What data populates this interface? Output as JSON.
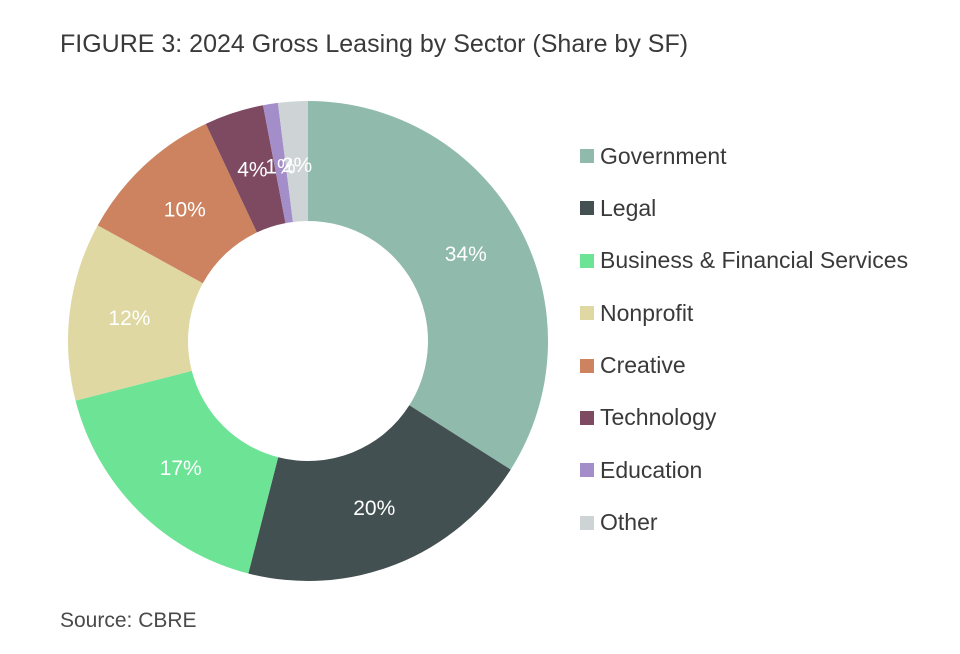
{
  "title": "FIGURE 3: 2024 Gross Leasing by Sector (Share by SF)",
  "source": "Source: CBRE",
  "chart_data": {
    "type": "pie",
    "variant": "donut",
    "legend_position": "right",
    "slices": [
      {
        "name": "Government",
        "value": 34,
        "label": "34%",
        "color": "#8fbaac"
      },
      {
        "name": "Legal",
        "value": 20,
        "label": "20%",
        "color": "#435052"
      },
      {
        "name": "Business & Financial Services",
        "value": 17,
        "label": "17%",
        "color": "#6de396"
      },
      {
        "name": "Nonprofit",
        "value": 12,
        "label": "12%",
        "color": "#dfd8a2"
      },
      {
        "name": "Creative",
        "value": 10,
        "label": "10%",
        "color": "#cd8360"
      },
      {
        "name": "Technology",
        "value": 4,
        "label": "4%",
        "color": "#7e4a62"
      },
      {
        "name": "Education",
        "value": 1,
        "label": "1%",
        "color": "#a48ec9"
      },
      {
        "name": "Other",
        "value": 2,
        "label": "2%",
        "color": "#ced3d5"
      }
    ]
  }
}
